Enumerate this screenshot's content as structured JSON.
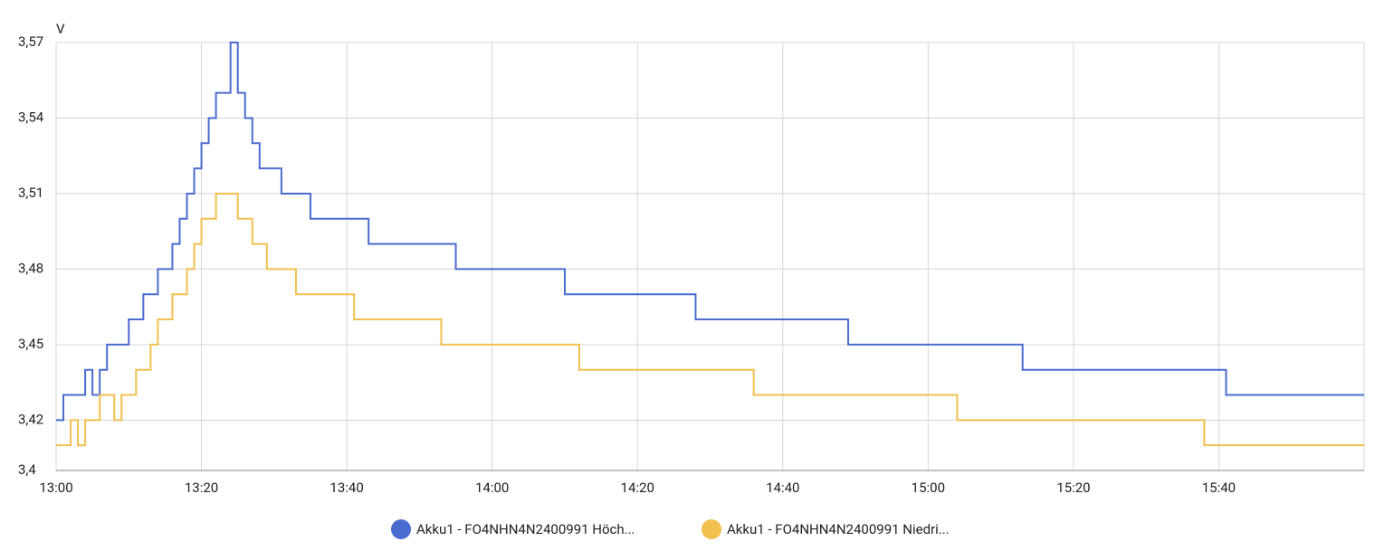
{
  "chart_data": {
    "type": "line",
    "step": true,
    "y_label": "V",
    "xlim": [
      "13:00",
      "16:00"
    ],
    "xticks": [
      "13:00",
      "13:20",
      "13:40",
      "14:00",
      "14:20",
      "14:40",
      "15:00",
      "15:20",
      "15:40"
    ],
    "ylim": [
      3.4,
      3.57
    ],
    "yticks": [
      {
        "value": 3.4,
        "label": "3,4"
      },
      {
        "value": 3.42,
        "label": "3,42"
      },
      {
        "value": 3.45,
        "label": "3,45"
      },
      {
        "value": 3.48,
        "label": "3,48"
      },
      {
        "value": 3.51,
        "label": "3,51"
      },
      {
        "value": 3.54,
        "label": "3,54"
      },
      {
        "value": 3.57,
        "label": "3,57"
      }
    ],
    "grid": true,
    "legend": "bottom",
    "series": [
      {
        "name": "Akku1 - FO4NHN4N2400991 Höch...",
        "color": "#4a6cd0",
        "x": [
          "13:00",
          "13:01",
          "13:04",
          "13:05",
          "13:06",
          "13:07",
          "13:10",
          "13:12",
          "13:14",
          "13:16",
          "13:17",
          "13:18",
          "13:19",
          "13:20",
          "13:21",
          "13:22",
          "13:24",
          "13:25",
          "13:26",
          "13:27",
          "13:28",
          "13:31",
          "13:35",
          "13:43",
          "13:55",
          "14:10",
          "14:28",
          "14:49",
          "15:13",
          "15:41",
          "16:00"
        ],
        "values": [
          3.42,
          3.43,
          3.44,
          3.43,
          3.44,
          3.45,
          3.46,
          3.47,
          3.48,
          3.49,
          3.5,
          3.51,
          3.52,
          3.53,
          3.54,
          3.55,
          3.57,
          3.55,
          3.54,
          3.53,
          3.52,
          3.51,
          3.5,
          3.49,
          3.48,
          3.47,
          3.46,
          3.45,
          3.44,
          3.43,
          3.43
        ]
      },
      {
        "name": "Akku1 - FO4NHN4N2400991 Niedri...",
        "color": "#f2c04f",
        "x": [
          "13:00",
          "13:02",
          "13:03",
          "13:04",
          "13:06",
          "13:08",
          "13:09",
          "13:11",
          "13:13",
          "13:14",
          "13:16",
          "13:18",
          "13:19",
          "13:20",
          "13:22",
          "13:25",
          "13:27",
          "13:29",
          "13:33",
          "13:41",
          "13:53",
          "14:12",
          "14:36",
          "15:04",
          "15:38",
          "16:00"
        ],
        "values": [
          3.41,
          3.42,
          3.41,
          3.42,
          3.43,
          3.42,
          3.43,
          3.44,
          3.45,
          3.46,
          3.47,
          3.48,
          3.49,
          3.5,
          3.51,
          3.5,
          3.49,
          3.48,
          3.47,
          3.46,
          3.45,
          3.44,
          3.43,
          3.42,
          3.41,
          3.41
        ]
      }
    ]
  }
}
